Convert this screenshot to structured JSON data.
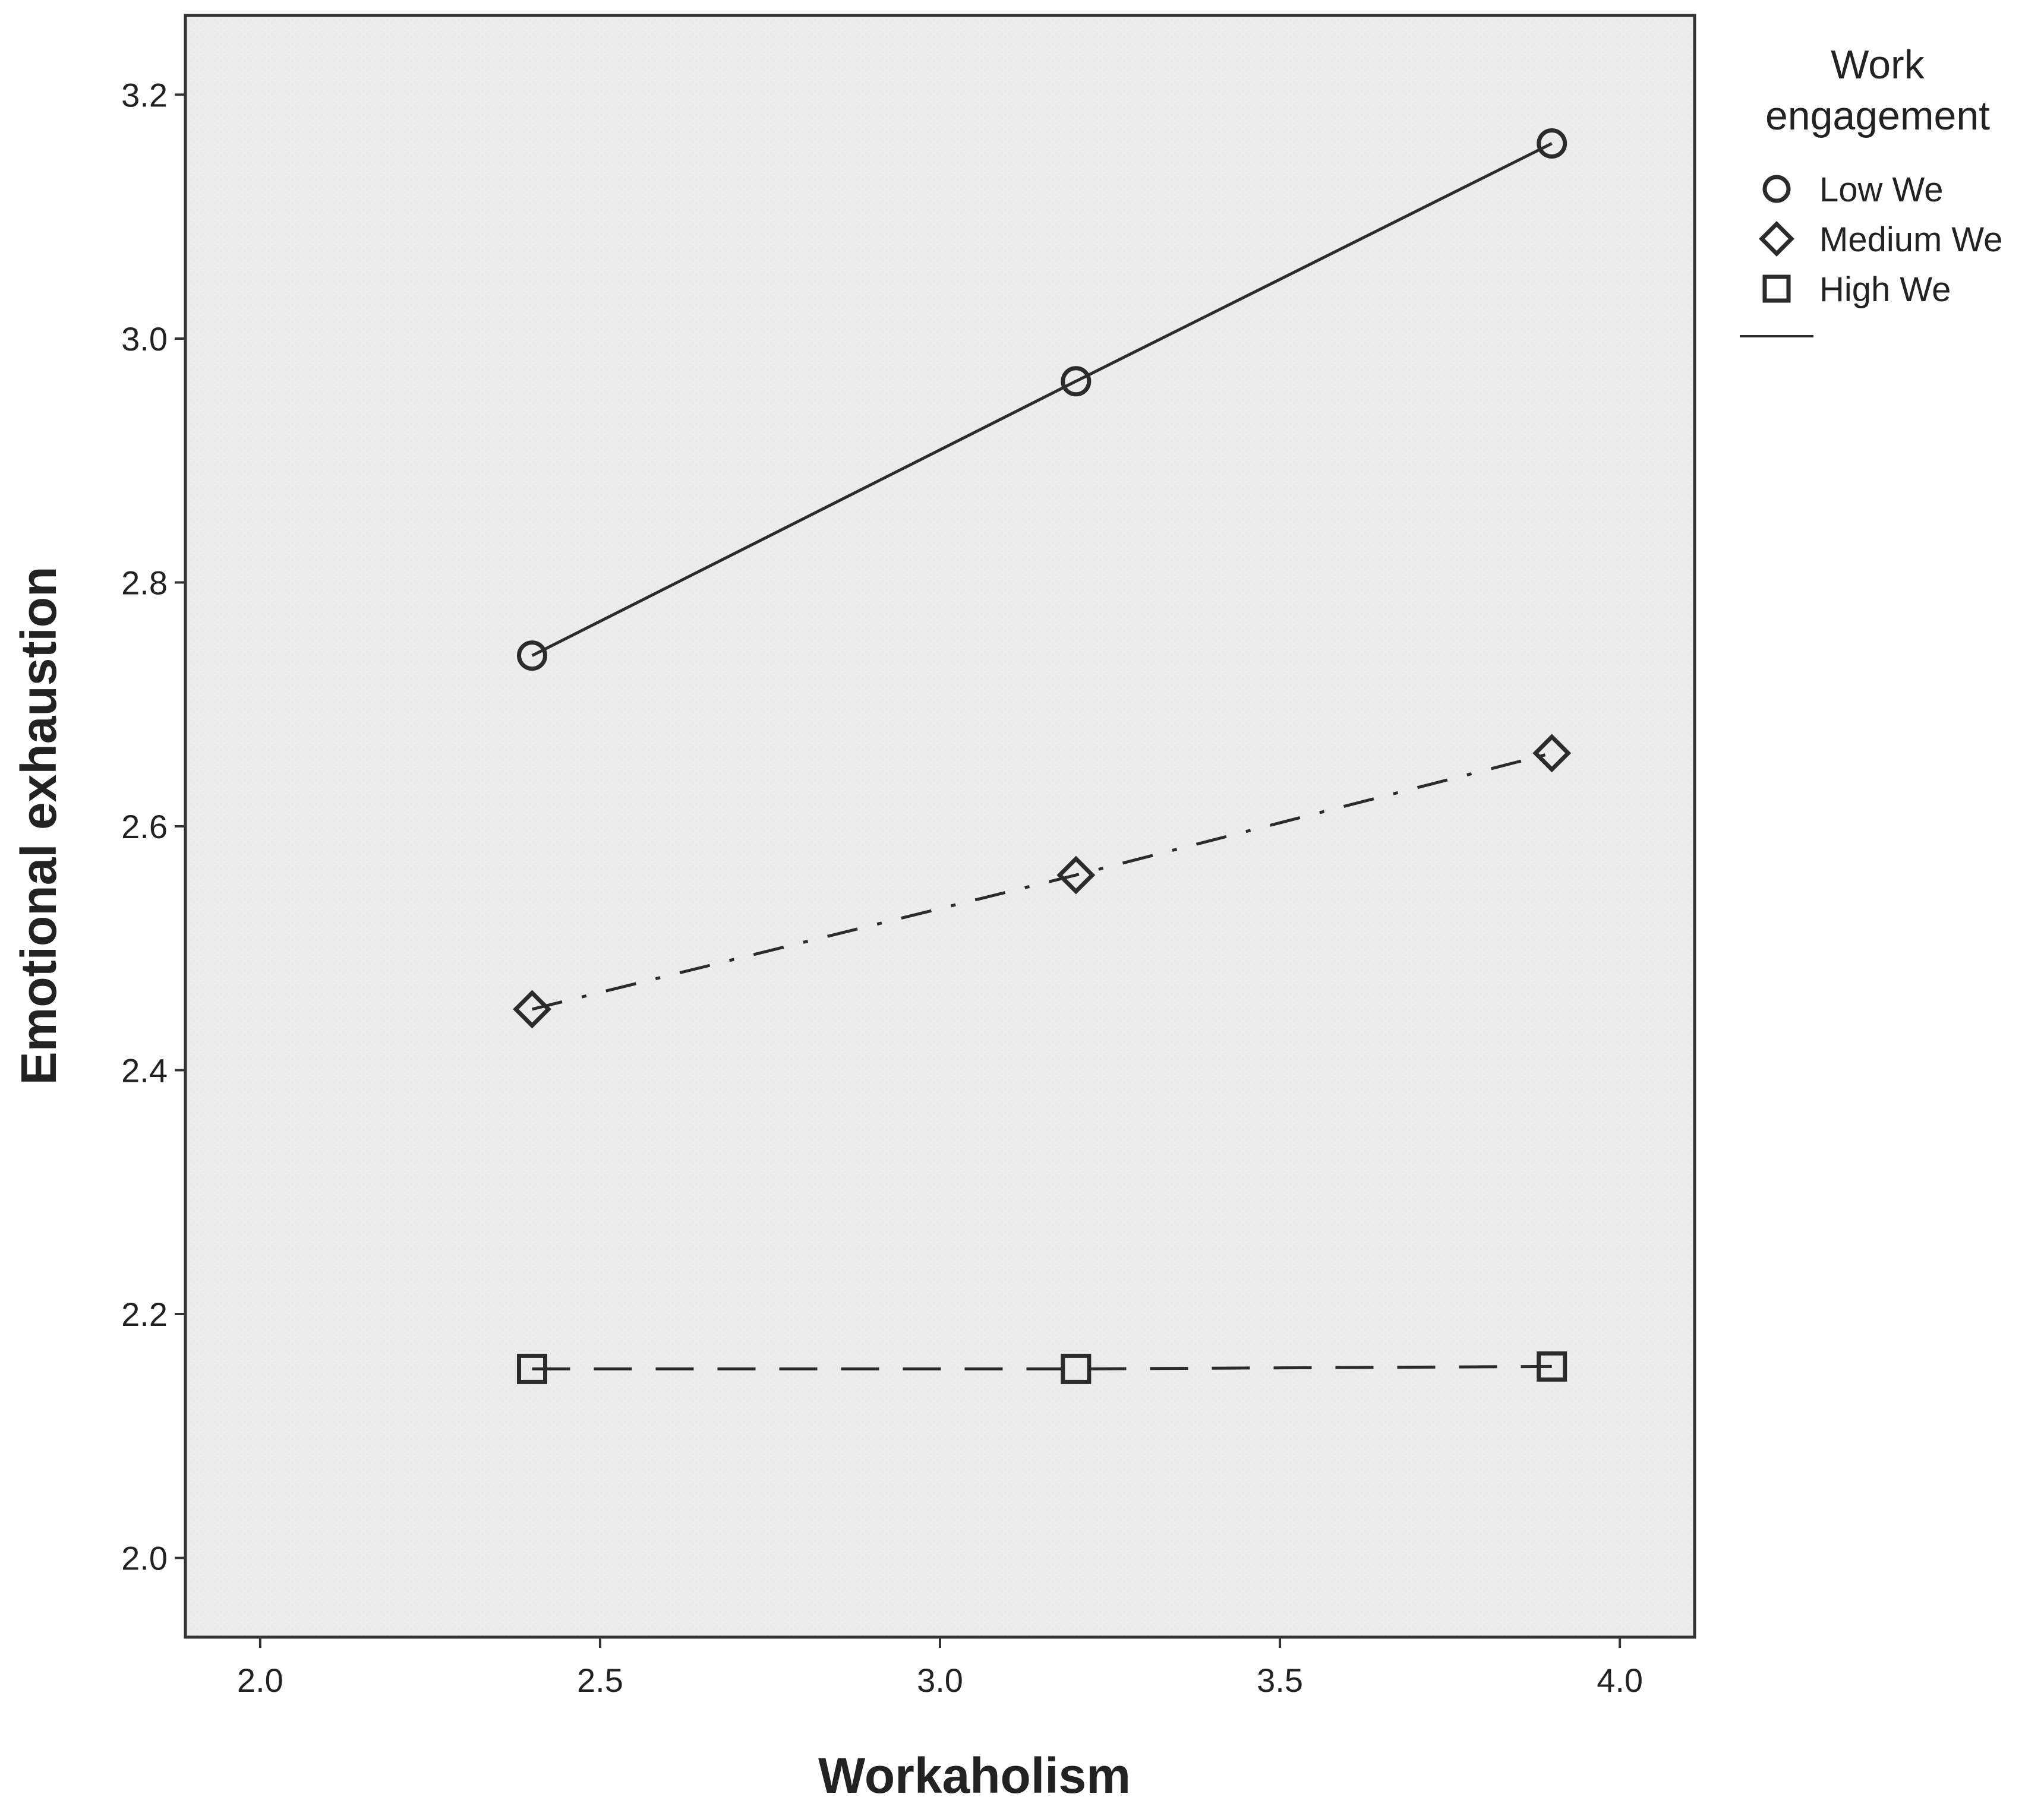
{
  "chart_data": {
    "type": "line",
    "title": "",
    "xlabel": "Workaholism",
    "ylabel": "Emotional exhaustion",
    "xlim": [
      1.89,
      4.11
    ],
    "ylim": [
      1.935,
      3.265
    ],
    "x_ticks": [
      "2.0",
      "2.5",
      "3.0",
      "3.5",
      "4.0"
    ],
    "y_ticks": [
      "2.0",
      "2.2",
      "2.4",
      "2.6",
      "2.8",
      "3.0",
      "3.2"
    ],
    "grid": false,
    "legend": {
      "title": "Work engagement",
      "position": "right"
    },
    "series": [
      {
        "name": "Low We",
        "marker": "circle",
        "line_style": "solid",
        "x": [
          2.4,
          3.2,
          3.9
        ],
        "y": [
          2.74,
          2.965,
          3.16
        ]
      },
      {
        "name": "Medium We",
        "marker": "diamond",
        "line_style": "dash-dot",
        "x": [
          2.4,
          3.2,
          3.9
        ],
        "y": [
          2.45,
          2.56,
          2.66
        ]
      },
      {
        "name": "High We",
        "marker": "square",
        "line_style": "dashed",
        "x": [
          2.4,
          3.2,
          3.9
        ],
        "y": [
          2.155,
          2.155,
          2.157
        ]
      }
    ],
    "colors": {
      "plot_background": "#ececec",
      "line": "#2b2b2b",
      "frame": "#333333"
    }
  }
}
